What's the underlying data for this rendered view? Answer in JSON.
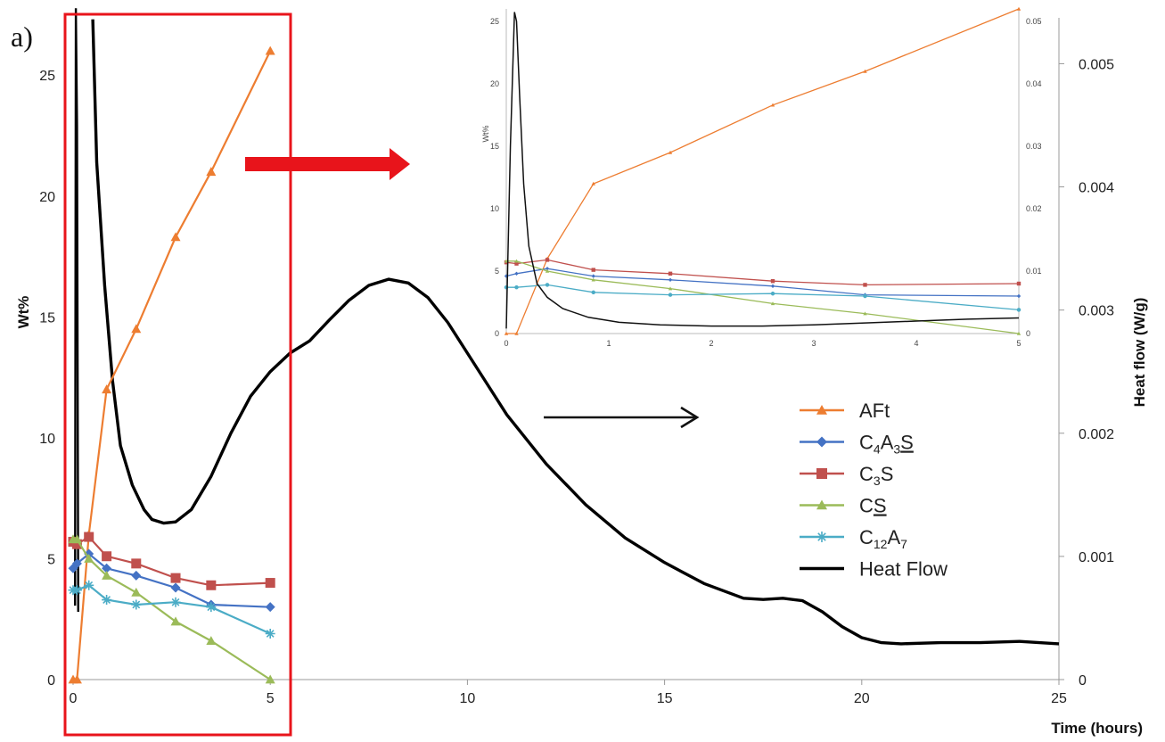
{
  "panel_label": "a)",
  "chart_data": {
    "type": "line",
    "x_label": "Time (hours)",
    "y_label": "Wt%",
    "y2_label": "Heat flow (W/g)",
    "xlim": [
      0,
      25
    ],
    "ylim": [
      0,
      27
    ],
    "y2lim": [
      0,
      0.0053
    ],
    "x_ticks": [
      "0",
      "5",
      "10",
      "15",
      "20",
      "25"
    ],
    "y_ticks": [
      "0",
      "5",
      "10",
      "15",
      "20",
      "25"
    ],
    "y2_ticks": [
      "0",
      "0.001",
      "0.002",
      "0.003",
      "0.004",
      "0.005"
    ],
    "phase_x": [
      0,
      0.1,
      0.4,
      0.85,
      1.6,
      2.6,
      3.5,
      5
    ],
    "series": [
      {
        "name": "AFt",
        "color": "#ED7D31",
        "marker": "triangle",
        "values": [
          0,
          0,
          6,
          12,
          14.5,
          18.3,
          21,
          26
        ]
      },
      {
        "name": "C4A3S",
        "color": "#4472C4",
        "marker": "diamond",
        "values": [
          4.6,
          4.8,
          5.2,
          4.6,
          4.3,
          3.8,
          3.1,
          3.0
        ]
      },
      {
        "name": "C3S",
        "color": "#C0504D",
        "marker": "square",
        "values": [
          5.7,
          5.6,
          5.9,
          5.1,
          4.8,
          4.2,
          3.9,
          4.0
        ]
      },
      {
        "name": "CS",
        "color": "#9BBB59",
        "marker": "triangle",
        "values": [
          5.8,
          5.8,
          5.0,
          4.3,
          3.6,
          2.4,
          1.6,
          0
        ]
      },
      {
        "name": "C12A7",
        "color": "#4BACC6",
        "marker": "star",
        "values": [
          3.7,
          3.7,
          3.9,
          3.3,
          3.1,
          3.2,
          3.0,
          1.9
        ]
      }
    ],
    "heat_flow": {
      "name": "Heat Flow",
      "color": "#000000",
      "x": [
        0.5,
        0.6,
        0.8,
        1.0,
        1.2,
        1.5,
        1.8,
        2.0,
        2.3,
        2.6,
        3.0,
        3.5,
        4.0,
        4.5,
        5.0,
        5.5,
        6.0,
        6.5,
        7.0,
        7.5,
        8.0,
        8.5,
        9.0,
        9.5,
        10.0,
        10.5,
        11.0,
        12.0,
        13.0,
        14.0,
        15.0,
        16.0,
        17.0,
        17.5,
        18.0,
        18.5,
        19.0,
        19.5,
        20.0,
        20.5,
        21.0,
        22.0,
        23.0,
        24.0,
        25.0
      ],
      "y": [
        0.00536,
        0.0042,
        0.0032,
        0.00243,
        0.0019,
        0.00158,
        0.00138,
        0.0013,
        0.00127,
        0.00128,
        0.00138,
        0.00165,
        0.002,
        0.0023,
        0.0025,
        0.00265,
        0.00275,
        0.00292,
        0.00308,
        0.0032,
        0.00325,
        0.00322,
        0.0031,
        0.0029,
        0.00265,
        0.0024,
        0.00215,
        0.00175,
        0.00142,
        0.00115,
        0.00095,
        0.00078,
        0.00066,
        0.00065,
        0.00066,
        0.00064,
        0.00055,
        0.00043,
        0.00034,
        0.0003,
        0.00029,
        0.0003,
        0.0003,
        0.00031,
        0.00029
      ]
    },
    "legend": [
      "AFt",
      "C4A3S",
      "C3S",
      "CS",
      "C12A7",
      "Heat Flow"
    ],
    "inset": {
      "x_ticks": [
        "0",
        "1",
        "2",
        "3",
        "4",
        "5"
      ],
      "y_ticks": [
        "0",
        "5",
        "10",
        "15",
        "20",
        "25"
      ],
      "y2_ticks": [
        "0",
        "0.01",
        "0.02",
        "0.03",
        "0.04",
        "0.05"
      ],
      "y_label": "Wt%"
    }
  }
}
